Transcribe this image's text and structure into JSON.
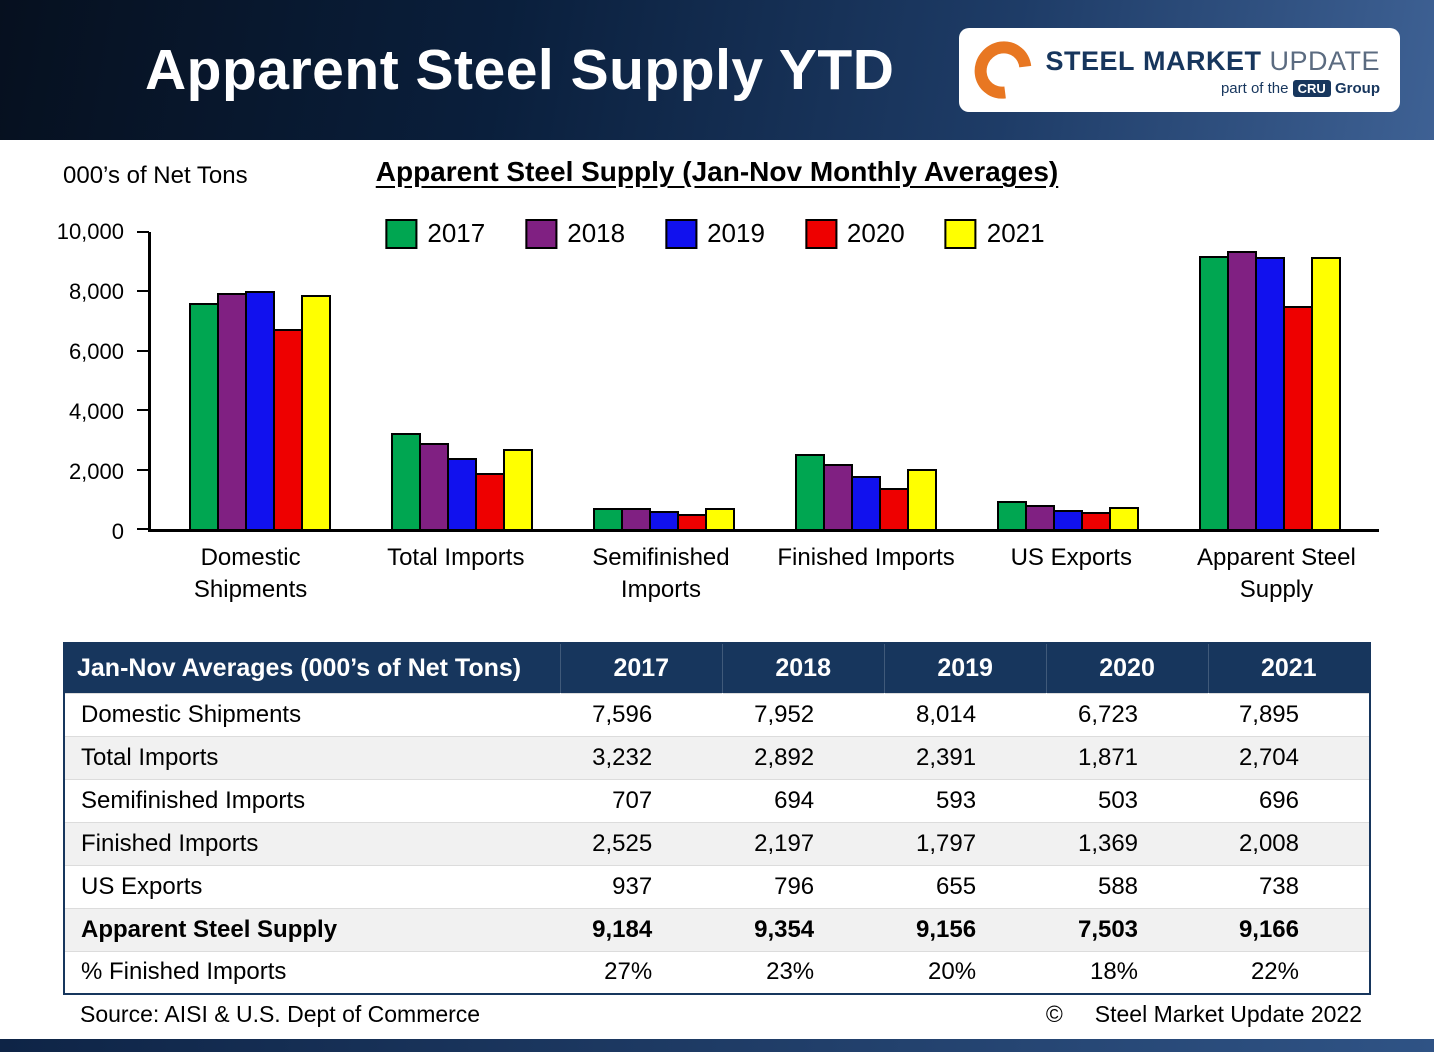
{
  "header": {
    "title": "Apparent Steel Supply YTD",
    "logo": {
      "steel": "STEEL",
      "market": "MARKET",
      "update": "UPDATE",
      "tagline_prefix": "part of the",
      "cru": "CRU",
      "group": "Group"
    }
  },
  "chart": {
    "units_label": "000’s of Net Tons",
    "title": "Apparent Steel Supply (Jan-Nov Monthly Averages)"
  },
  "chart_data": {
    "type": "bar",
    "title": "Apparent Steel Supply (Jan-Nov Monthly Averages)",
    "units": "000's of Net Tons",
    "categories": [
      "Domestic Shipments",
      "Total Imports",
      "Semifinished Imports",
      "Finished Imports",
      "US Exports",
      "Apparent Steel Supply"
    ],
    "series": [
      {
        "name": "2017",
        "color": "#00A651",
        "values": [
          7596,
          3232,
          707,
          2525,
          937,
          9184
        ]
      },
      {
        "name": "2018",
        "color": "#802082",
        "values": [
          7952,
          2892,
          694,
          2197,
          796,
          9354
        ]
      },
      {
        "name": "2019",
        "color": "#1111EE",
        "values": [
          8014,
          2391,
          593,
          1797,
          655,
          9156
        ]
      },
      {
        "name": "2020",
        "color": "#EE0000",
        "values": [
          6723,
          1871,
          503,
          1369,
          588,
          7503
        ]
      },
      {
        "name": "2021",
        "color": "#FFFF00",
        "values": [
          7895,
          2704,
          696,
          2008,
          738,
          9166
        ]
      }
    ],
    "ylim": [
      0,
      10000
    ],
    "yticks": [
      0,
      2000,
      4000,
      6000,
      8000,
      10000
    ],
    "grid": false,
    "legend_position": "top-center"
  },
  "table": {
    "header_label": "Jan-Nov Averages (000’s of Net Tons)",
    "columns": [
      "2017",
      "2018",
      "2019",
      "2020",
      "2021"
    ],
    "rows": [
      {
        "label": "Domestic Shipments",
        "values": [
          "7,596",
          "7,952",
          "8,014",
          "6,723",
          "7,895"
        ],
        "bold": false
      },
      {
        "label": "Total Imports",
        "values": [
          "3,232",
          "2,892",
          "2,391",
          "1,871",
          "2,704"
        ],
        "bold": false
      },
      {
        "label": "Semifinished Imports",
        "values": [
          "707",
          "694",
          "593",
          "503",
          "696"
        ],
        "bold": false
      },
      {
        "label": "Finished Imports",
        "values": [
          "2,525",
          "2,197",
          "1,797",
          "1,369",
          "2,008"
        ],
        "bold": false
      },
      {
        "label": "US Exports",
        "values": [
          "937",
          "796",
          "655",
          "588",
          "738"
        ],
        "bold": false
      },
      {
        "label": "Apparent Steel Supply",
        "values": [
          "9,184",
          "9,354",
          "9,156",
          "7,503",
          "9,166"
        ],
        "bold": true
      },
      {
        "label": "% Finished Imports",
        "values": [
          "27%",
          "23%",
          "20%",
          "18%",
          "22%"
        ],
        "bold": false
      }
    ]
  },
  "footer": {
    "source": "Source:  AISI & U.S. Dept of Commerce",
    "copyright_symbol": "©",
    "copyright_text": "Steel Market Update 2022"
  }
}
